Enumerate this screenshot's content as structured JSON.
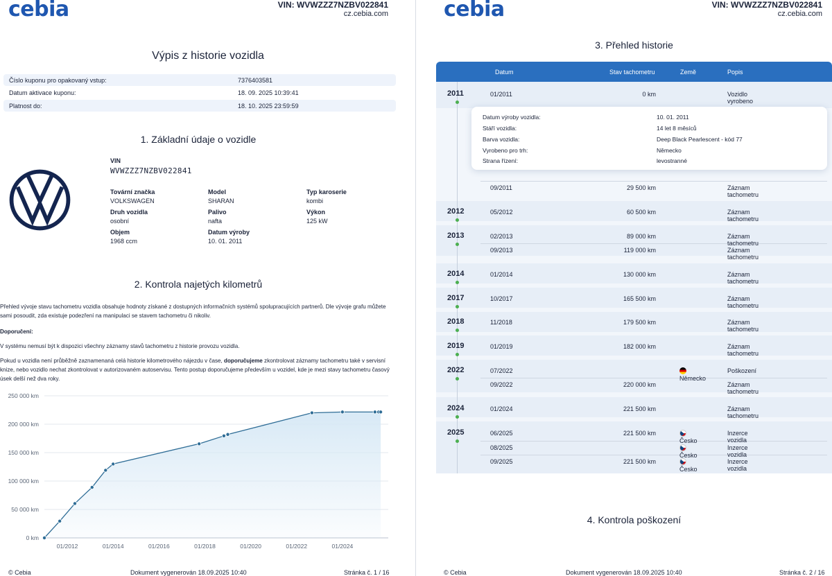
{
  "header": {
    "logo": "cebia",
    "vin": "VIN: WVWZZZ7NZBV022841",
    "site": "cz.cebia.com"
  },
  "page1": {
    "title": "Výpis z historie vozidla",
    "coupon_rows": [
      {
        "key": "Číslo kuponu pro opakovaný vstup:",
        "value": "7376403581"
      },
      {
        "key": "Datum aktivace kuponu:",
        "value": "18. 09. 2025 10:39:41"
      },
      {
        "key": "Platnost do:",
        "value": "18. 10. 2025 23:59:59"
      }
    ],
    "section1_title": "1. Základní údaje o vozidle",
    "vin_label": "VIN",
    "vin_value": "WVWZZZ7NZBV022841",
    "brand_logo": "volkswagen-logo",
    "fields": [
      {
        "label": "Tovární značka",
        "value": "VOLKSWAGEN"
      },
      {
        "label": "Model",
        "value": "SHARAN"
      },
      {
        "label": "Typ karoserie",
        "value": "kombi"
      },
      {
        "label": "Druh vozidla",
        "value": "osobní"
      },
      {
        "label": "Palivo",
        "value": "nafta"
      },
      {
        "label": "Výkon",
        "value": "125 kW"
      },
      {
        "label": "Objem",
        "value": "1968 ccm"
      },
      {
        "label": "Datum výroby",
        "value": "10. 01. 2011"
      }
    ],
    "section2_title": "2. Kontrola najetých kilometrů",
    "para1": "Přehled vývoje stavu tachometru vozidla obsahuje hodnoty získané z dostupných informačních systémů spolupracujících partnerů. Dle vývoje grafu můžete sami posoudit, zda existuje podezření na manipulaci se stavem tachometru či nikoliv.",
    "recommend_label": "Doporučení:",
    "para2": "V systému nemusí být k dispozici všechny záznamy stavů tachometru z historie provozu vozidla.",
    "para3_a": "Pokud u vozidla není průběžně zaznamenaná celá historie kilometrového nájezdu v čase, ",
    "para3_b": "doporučujeme",
    "para3_c": " zkontrolovat záznamy tachometru také v servisní knize, nebo vozidlo nechat zkontrolovat v autorizovaném autoservisu. Tento postup doporučujeme především u vozidel, kde je mezi stavy tachometru časový úsek delší než dva roky.",
    "footer_left": "© Cebia",
    "footer_center": "Dokument vygenerován 18.09.2025 10:40",
    "footer_right": "Stránka č. 1 / 16"
  },
  "chart_data": {
    "type": "area",
    "title": "",
    "xlabel": "",
    "ylabel": "",
    "y_ticks": [
      "0 km",
      "50 000 km",
      "100 000 km",
      "150 000 km",
      "200 000 km",
      "250 000 km"
    ],
    "x_ticks": [
      "01/2012",
      "01/2014",
      "01/2016",
      "01/2018",
      "01/2020",
      "01/2022",
      "01/2024"
    ],
    "ylim": [
      0,
      250000
    ],
    "xlim": [
      2011.0,
      2026.0
    ],
    "grid": true,
    "line_color": "#2f6d96",
    "fill_color": "#d6e8f5",
    "points": [
      {
        "x": 2011.0,
        "y": 0
      },
      {
        "x": 2011.67,
        "y": 29500
      },
      {
        "x": 2012.33,
        "y": 60500
      },
      {
        "x": 2013.08,
        "y": 89000
      },
      {
        "x": 2013.67,
        "y": 119000
      },
      {
        "x": 2014.0,
        "y": 130000
      },
      {
        "x": 2017.75,
        "y": 165500
      },
      {
        "x": 2018.83,
        "y": 179500
      },
      {
        "x": 2019.0,
        "y": 182000
      },
      {
        "x": 2022.67,
        "y": 220000
      },
      {
        "x": 2024.0,
        "y": 221500
      },
      {
        "x": 2025.42,
        "y": 221500
      },
      {
        "x": 2025.58,
        "y": 221500
      },
      {
        "x": 2025.67,
        "y": 221500
      }
    ]
  },
  "page2": {
    "section3_title": "3. Přehled historie",
    "columns": {
      "date": "Datum",
      "odometer": "Stav tachometru",
      "country": "Země",
      "description": "Popis"
    },
    "detail_card": [
      {
        "key": "Datum výroby vozidla:",
        "value": "10. 01. 2011"
      },
      {
        "key": "Stáří vozidla:",
        "value": "14 let 8 měsíců"
      },
      {
        "key": "Barva vozidla:",
        "value": "Deep Black Pearlescent - kód 77"
      },
      {
        "key": "Vyrobeno pro trh:",
        "value": "Německo"
      },
      {
        "key": "Strana řízení:",
        "value": "levostranné"
      }
    ],
    "history": [
      {
        "year": "2011",
        "rows": [
          {
            "date": "01/2011",
            "km": "0 km",
            "country": "",
            "flag": "",
            "desc": "Vozidlo vyrobeno"
          },
          {
            "date": "09/2011",
            "km": "29 500 km",
            "country": "",
            "flag": "",
            "desc": "Záznam tachometru"
          }
        ]
      },
      {
        "year": "2012",
        "rows": [
          {
            "date": "05/2012",
            "km": "60 500 km",
            "country": "",
            "flag": "",
            "desc": "Záznam tachometru"
          }
        ]
      },
      {
        "year": "2013",
        "rows": [
          {
            "date": "02/2013",
            "km": "89 000 km",
            "country": "",
            "flag": "",
            "desc": "Záznam tachometru"
          },
          {
            "date": "09/2013",
            "km": "119 000 km",
            "country": "",
            "flag": "",
            "desc": "Záznam tachometru"
          }
        ]
      },
      {
        "year": "2014",
        "rows": [
          {
            "date": "01/2014",
            "km": "130 000 km",
            "country": "",
            "flag": "",
            "desc": "Záznam tachometru"
          }
        ]
      },
      {
        "year": "2017",
        "rows": [
          {
            "date": "10/2017",
            "km": "165 500 km",
            "country": "",
            "flag": "",
            "desc": "Záznam tachometru"
          }
        ]
      },
      {
        "year": "2018",
        "rows": [
          {
            "date": "11/2018",
            "km": "179 500 km",
            "country": "",
            "flag": "",
            "desc": "Záznam tachometru"
          }
        ]
      },
      {
        "year": "2019",
        "rows": [
          {
            "date": "01/2019",
            "km": "182 000 km",
            "country": "",
            "flag": "",
            "desc": "Záznam tachometru"
          }
        ]
      },
      {
        "year": "2022",
        "rows": [
          {
            "date": "07/2022",
            "km": "",
            "country": "Německo",
            "flag": "de",
            "desc": "Poškození"
          },
          {
            "date": "09/2022",
            "km": "220 000 km",
            "country": "",
            "flag": "",
            "desc": "Záznam tachometru"
          }
        ]
      },
      {
        "year": "2024",
        "rows": [
          {
            "date": "01/2024",
            "km": "221 500 km",
            "country": "",
            "flag": "",
            "desc": "Záznam tachometru"
          }
        ]
      },
      {
        "year": "2025",
        "rows": [
          {
            "date": "06/2025",
            "km": "221 500 km",
            "country": "Česko",
            "flag": "cz",
            "desc": "Inzerce vozidla"
          },
          {
            "date": "08/2025",
            "km": "",
            "country": "Česko",
            "flag": "cz",
            "desc": "Inzerce vozidla"
          },
          {
            "date": "09/2025",
            "km": "221 500 km",
            "country": "Česko",
            "flag": "cz",
            "desc": "Inzerce vozidla"
          }
        ]
      }
    ],
    "section4_title": "4. Kontrola poškození",
    "footer_left": "© Cebia",
    "footer_center": "Dokument vygenerován 18.09.2025 10:40",
    "footer_right": "Stránka č. 2 / 16"
  }
}
